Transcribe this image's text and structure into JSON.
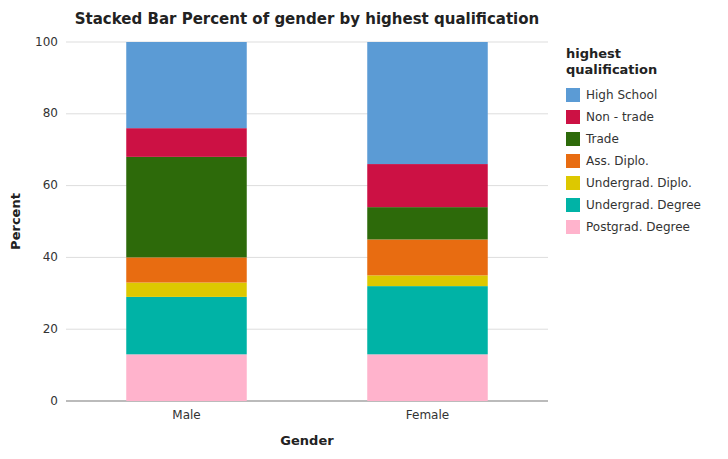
{
  "chart_data": {
    "type": "bar",
    "stacked": true,
    "title": "Stacked Bar Percent of gender by highest qualification",
    "x_label": "Gender",
    "y_label": "Percent",
    "legend_title": "highest\nqualification",
    "categories": [
      "Male",
      "Female"
    ],
    "series": [
      {
        "name": "High School",
        "color": "#5b9bd5",
        "values": [
          24,
          34
        ]
      },
      {
        "name": "Non - trade",
        "color": "#cc1144",
        "values": [
          8,
          12
        ]
      },
      {
        "name": "Trade",
        "color": "#2d6a0a",
        "values": [
          28,
          9
        ]
      },
      {
        "name": "Ass. Diplo.",
        "color": "#e86c11",
        "values": [
          7,
          10
        ]
      },
      {
        "name": "Undergrad. Diplo.",
        "color": "#ddc800",
        "values": [
          4,
          3
        ]
      },
      {
        "name": "Undergrad. Degree",
        "color": "#00b3a6",
        "values": [
          16,
          19
        ]
      },
      {
        "name": "Postgrad. Degree",
        "color": "#ffb3cc",
        "values": [
          13,
          13
        ]
      }
    ],
    "ylim": [
      0,
      100
    ],
    "yticks": [
      0,
      20,
      40,
      60,
      80,
      100
    ],
    "grid": true,
    "legend": "right"
  }
}
